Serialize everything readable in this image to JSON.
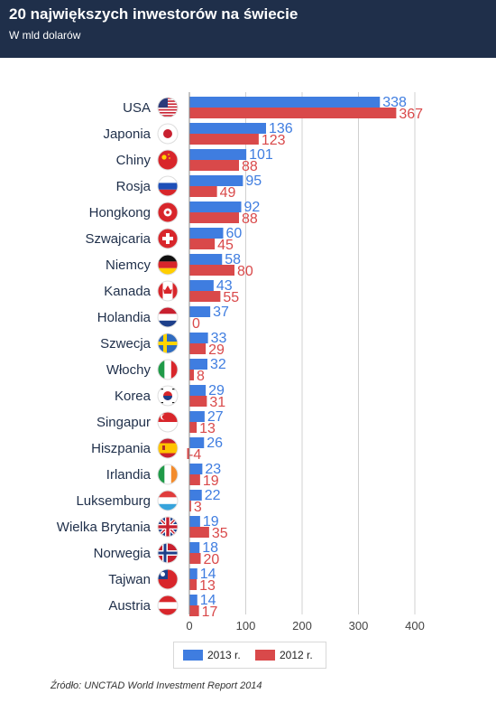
{
  "header": {
    "title": "20 największych inwestorów na świecie",
    "subtitle": "W mld dolarów"
  },
  "legend": {
    "s2013": "2013 r.",
    "s2012": "2012 r."
  },
  "source": "Źródło: UNCTAD World Investment Report 2014",
  "colors": {
    "s2013": "#3f7de0",
    "s2012": "#d9494a",
    "header": "#1f2f4a"
  },
  "chart_data": {
    "type": "bar",
    "orientation": "horizontal",
    "title": "20 największych inwestorów na świecie",
    "subtitle": "W mld dolarów",
    "categories": [
      "USA",
      "Japonia",
      "Chiny",
      "Rosja",
      "Hongkong",
      "Szwajcaria",
      "Niemcy",
      "Kanada",
      "Holandia",
      "Szwecja",
      "Włochy",
      "Korea",
      "Singapur",
      "Hiszpania",
      "Irlandia",
      "Luksemburg",
      "Wielka Brytania",
      "Norwegia",
      "Tajwan",
      "Austria"
    ],
    "flag_icons": [
      "flag-usa-icon",
      "flag-japan-icon",
      "flag-china-icon",
      "flag-russia-icon",
      "flag-hongkong-icon",
      "flag-switzerland-icon",
      "flag-germany-icon",
      "flag-canada-icon",
      "flag-netherlands-icon",
      "flag-sweden-icon",
      "flag-italy-icon",
      "flag-korea-icon",
      "flag-singapore-icon",
      "flag-spain-icon",
      "flag-ireland-icon",
      "flag-luxembourg-icon",
      "flag-uk-icon",
      "flag-norway-icon",
      "flag-taiwan-icon",
      "flag-austria-icon"
    ],
    "series": [
      {
        "name": "2013 r.",
        "values": [
          338,
          136,
          101,
          95,
          92,
          60,
          58,
          43,
          37,
          33,
          32,
          29,
          27,
          26,
          23,
          22,
          19,
          18,
          14,
          14
        ]
      },
      {
        "name": "2012 r.",
        "values": [
          367,
          123,
          88,
          49,
          88,
          45,
          80,
          55,
          0,
          29,
          8,
          31,
          13,
          -4,
          19,
          3,
          35,
          20,
          13,
          17
        ]
      }
    ],
    "xlim": [
      0,
      400
    ],
    "xticks": [
      0,
      100,
      200,
      300,
      400
    ],
    "grid": true,
    "legend_position": "bottom"
  }
}
